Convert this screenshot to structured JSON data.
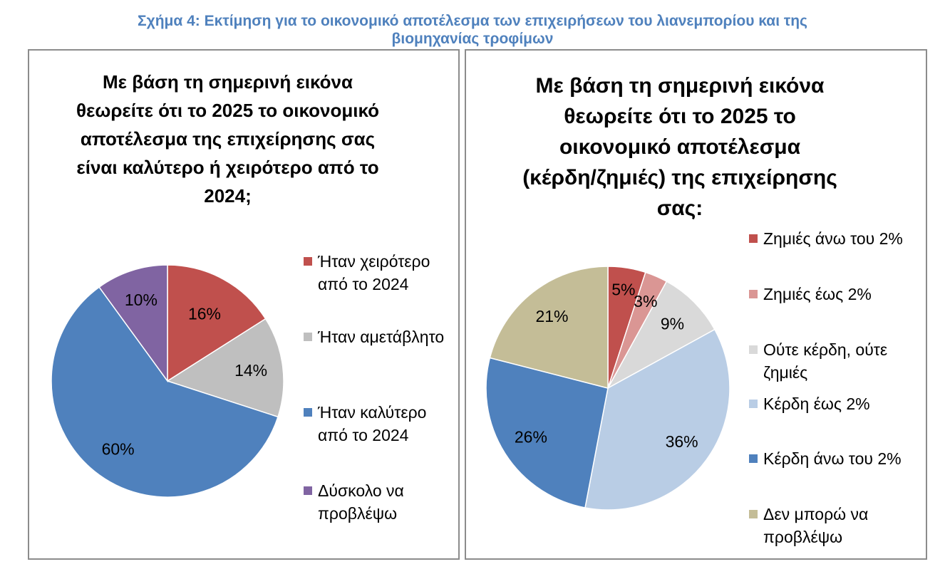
{
  "figure": {
    "title_lines": [
      "Σχήμα 4: Εκτίμηση για το οικονομικό αποτέλεσμα των επιχειρήσεων του λιανεμπορίου και της",
      "βιομηχανίας τροφίμων"
    ]
  },
  "chart_data": [
    {
      "type": "pie",
      "title_lines": [
        "Με βάση τη σημερινή εικόνα",
        "θεωρείτε ότι το 2025 το οικονομικό",
        "αποτέλεσμα της επιχείρησης σας",
        "είναι καλύτερο ή χειρότερο από το",
        "2024;"
      ],
      "slices": [
        {
          "label_lines": [
            "Ήταν χειρότερο",
            "από το 2024"
          ],
          "value": 16,
          "data_label": "16%",
          "color": "#c0504d"
        },
        {
          "label_lines": [
            "Ήταν αμετάβλητο"
          ],
          "value": 14,
          "data_label": "14%",
          "color": "#bfbfbf"
        },
        {
          "label_lines": [
            "Ήταν καλύτερο",
            "από το 2024"
          ],
          "value": 60,
          "data_label": "60%",
          "color": "#4f81bd"
        },
        {
          "label_lines": [
            "Δύσκολο να",
            "προβλέψω"
          ],
          "value": 10,
          "data_label": "10%",
          "color": "#8064a2"
        }
      ],
      "legend_position": "right"
    },
    {
      "type": "pie",
      "title_lines": [
        "Με βάση τη σημερινή εικόνα",
        "θεωρείτε ότι το 2025 το",
        "οικονομικό αποτέλεσμα",
        "(κέρδη/ζημιές) της επιχείρησης",
        "σας:"
      ],
      "slices": [
        {
          "label_lines": [
            "Ζημιές άνω του 2%"
          ],
          "value": 5,
          "data_label": "5%",
          "color": "#c0504d"
        },
        {
          "label_lines": [
            "Ζημιές έως 2%"
          ],
          "value": 3,
          "data_label": "3%",
          "color": "#da9694"
        },
        {
          "label_lines": [
            "Ούτε κέρδη, ούτε",
            "ζημιές"
          ],
          "value": 9,
          "data_label": "9%",
          "color": "#d9d9d9"
        },
        {
          "label_lines": [
            "Κέρδη έως 2%"
          ],
          "value": 36,
          "data_label": "36%",
          "color": "#b9cde5"
        },
        {
          "label_lines": [
            "Κέρδη άνω του 2%"
          ],
          "value": 26,
          "data_label": "26%",
          "color": "#4f81bd"
        },
        {
          "label_lines": [
            "Δεν μπορώ να",
            "προβλέψω"
          ],
          "value": 21,
          "data_label": "21%",
          "color": "#c4bd97"
        }
      ],
      "legend_position": "right"
    }
  ]
}
